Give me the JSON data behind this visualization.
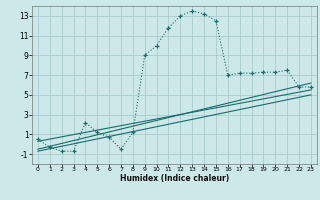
{
  "xlabel": "Humidex (Indice chaleur)",
  "bg_color": "#cce8e8",
  "grid_color": "#aacccc",
  "line_color": "#1a6b6b",
  "xlim": [
    -0.5,
    23.5
  ],
  "ylim": [
    -2,
    14
  ],
  "xticks": [
    0,
    1,
    2,
    3,
    4,
    5,
    6,
    7,
    8,
    9,
    10,
    11,
    12,
    13,
    14,
    15,
    16,
    17,
    18,
    19,
    20,
    21,
    22,
    23
  ],
  "yticks": [
    -1,
    1,
    3,
    5,
    7,
    9,
    11,
    13
  ],
  "curve1_x": [
    0,
    1,
    2,
    3,
    4,
    5,
    6,
    7,
    8,
    9,
    10,
    11,
    12,
    13,
    14,
    15,
    16,
    17,
    18,
    19,
    20,
    21,
    22,
    23
  ],
  "curve1_y": [
    0.5,
    -0.3,
    -0.7,
    -0.7,
    2.2,
    1.2,
    0.7,
    -0.5,
    1.2,
    9.0,
    10.0,
    11.8,
    13.0,
    13.5,
    13.2,
    12.5,
    7.0,
    7.2,
    7.2,
    7.3,
    7.3,
    7.5,
    5.8,
    5.8
  ],
  "line1_x": [
    0,
    23
  ],
  "line1_y": [
    0.3,
    5.5
  ],
  "line2_x": [
    0,
    23
  ],
  "line2_y": [
    -0.5,
    6.2
  ],
  "line3_x": [
    0,
    23
  ],
  "line3_y": [
    -0.7,
    5.0
  ]
}
